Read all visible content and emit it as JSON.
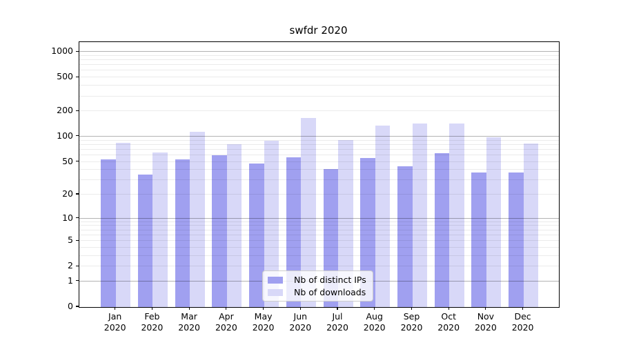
{
  "chart_data": {
    "type": "bar",
    "title": "swfdr 2020",
    "categories": [
      "Jan 2020",
      "Feb 2020",
      "Mar 2020",
      "Apr 2020",
      "May 2020",
      "Jun 2020",
      "Jul 2020",
      "Aug 2020",
      "Sep 2020",
      "Oct 2020",
      "Nov 2020",
      "Dec 2020"
    ],
    "series": [
      {
        "name": "Nb of distinct IPs",
        "color": "#a0a0f0",
        "values": [
          53,
          35,
          54,
          60,
          48,
          57,
          41,
          56,
          44,
          64,
          37,
          37
        ]
      },
      {
        "name": "Nb of downloads",
        "color": "#d8d8f8",
        "values": [
          84,
          65,
          114,
          81,
          90,
          166,
          91,
          135,
          143,
          143,
          98,
          82
        ]
      }
    ],
    "xlabel": "",
    "ylabel": "",
    "yscale": "log1p",
    "ylim": [
      0,
      1302
    ],
    "yticks": [
      0,
      1,
      2,
      5,
      10,
      20,
      50,
      100,
      200,
      500,
      1000
    ],
    "major_gridlines": [
      1,
      10,
      100,
      1000
    ],
    "minor_gridlines": [
      2,
      3,
      4,
      5,
      6,
      7,
      8,
      9,
      20,
      30,
      40,
      50,
      60,
      70,
      80,
      90,
      200,
      300,
      400,
      500,
      600,
      700,
      800,
      900
    ],
    "grid": true,
    "legend_position": "lower center"
  }
}
